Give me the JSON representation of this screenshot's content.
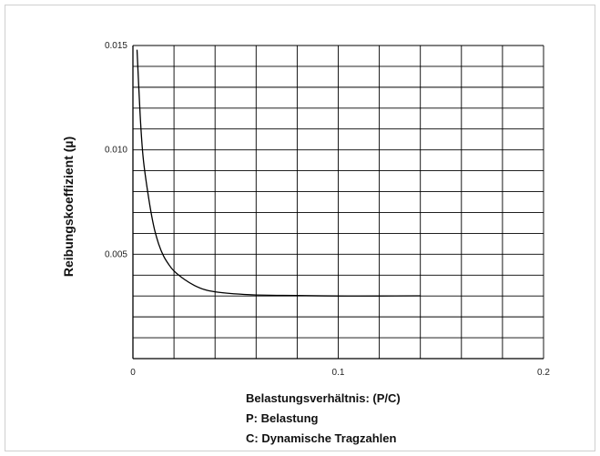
{
  "chart_data": {
    "type": "line",
    "title": "",
    "xlabel": "Belastungsverhältnis: (P/C)",
    "ylabel": "Reibungskoeffizient (µ)",
    "notes": [
      "P: Belastung",
      "C: Dynamische Tragzahlen"
    ],
    "xlim": [
      0,
      0.2
    ],
    "ylim": [
      0,
      0.015
    ],
    "x_ticks": [
      0,
      0.1,
      0.2
    ],
    "x_tick_labels": [
      "0",
      "0.1",
      "0.2"
    ],
    "y_ticks": [
      0.005,
      0.01,
      0.015
    ],
    "y_tick_labels": [
      "0.005",
      "0.010",
      "0.015"
    ],
    "grid": true,
    "grid_x_step": 0.02,
    "grid_y_step": 0.001,
    "series": [
      {
        "color": "#000000",
        "x": [
          0.002,
          0.0035,
          0.005,
          0.0075,
          0.01,
          0.0125,
          0.015,
          0.0175,
          0.02,
          0.025,
          0.03,
          0.035,
          0.04,
          0.05,
          0.06,
          0.07,
          0.08,
          0.1,
          0.12,
          0.14
        ],
        "y": [
          0.0148,
          0.0117,
          0.0096,
          0.0078,
          0.0064,
          0.0055,
          0.0049,
          0.0045,
          0.0042,
          0.0038,
          0.0035,
          0.0033,
          0.0032,
          0.0031,
          0.00305,
          0.00303,
          0.00302,
          0.003,
          0.003,
          0.00301
        ]
      }
    ]
  }
}
